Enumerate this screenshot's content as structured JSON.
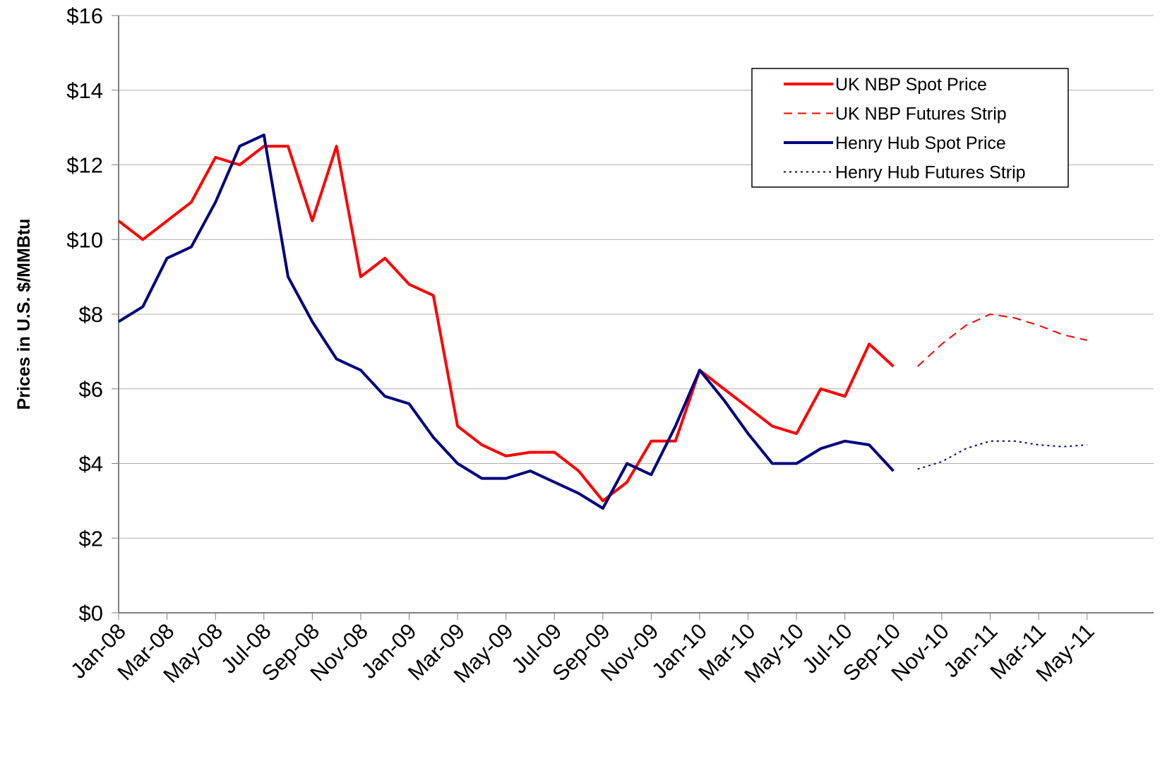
{
  "chart_data": {
    "type": "line",
    "ylabel": "Prices  in U.S. $/MMBtu",
    "xlim": [
      "2008-01",
      "2011-06"
    ],
    "xticks": [
      {
        "value": "2008-01",
        "label": "Jan-08"
      },
      {
        "value": "2008-03",
        "label": "Mar-08"
      },
      {
        "value": "2008-05",
        "label": "May-08"
      },
      {
        "value": "2008-07",
        "label": "Jul-08"
      },
      {
        "value": "2008-09",
        "label": "Sep-08"
      },
      {
        "value": "2008-11",
        "label": "Nov-08"
      },
      {
        "value": "2009-01",
        "label": "Jan-09"
      },
      {
        "value": "2009-03",
        "label": "Mar-09"
      },
      {
        "value": "2009-05",
        "label": "May-09"
      },
      {
        "value": "2009-07",
        "label": "Jul-09"
      },
      {
        "value": "2009-09",
        "label": "Sep-09"
      },
      {
        "value": "2009-11",
        "label": "Nov-09"
      },
      {
        "value": "2010-01",
        "label": "Jan-10"
      },
      {
        "value": "2010-03",
        "label": "Mar-10"
      },
      {
        "value": "2010-05",
        "label": "May-10"
      },
      {
        "value": "2010-07",
        "label": "Jul-10"
      },
      {
        "value": "2010-09",
        "label": "Sep-10"
      },
      {
        "value": "2010-11",
        "label": "Nov-10"
      },
      {
        "value": "2011-01",
        "label": "Jan-11"
      },
      {
        "value": "2011-03",
        "label": "Mar-11"
      },
      {
        "value": "2011-05",
        "label": "May-11"
      }
    ],
    "ylim": [
      0,
      16
    ],
    "yticks": [
      {
        "value": 0,
        "label": "$0"
      },
      {
        "value": 2,
        "label": "$2"
      },
      {
        "value": 4,
        "label": "$4"
      },
      {
        "value": 6,
        "label": "$6"
      },
      {
        "value": 8,
        "label": "$8"
      },
      {
        "value": 10,
        "label": "$10"
      },
      {
        "value": 12,
        "label": "$12"
      },
      {
        "value": 14,
        "label": "$14"
      },
      {
        "value": 16,
        "label": "$16"
      }
    ],
    "grid": true,
    "legend_position": "upper right",
    "series": [
      {
        "name": "UK NBP Spot Price",
        "color": "#ff0000",
        "dash": "solid",
        "x": [
          "2008-01",
          "2008-02",
          "2008-03",
          "2008-04",
          "2008-05",
          "2008-06",
          "2008-07",
          "2008-08",
          "2008-09",
          "2008-10",
          "2008-11",
          "2008-12",
          "2009-01",
          "2009-02",
          "2009-03",
          "2009-04",
          "2009-05",
          "2009-06",
          "2009-07",
          "2009-08",
          "2009-09",
          "2009-10",
          "2009-11",
          "2009-12",
          "2010-01",
          "2010-02",
          "2010-03",
          "2010-04",
          "2010-05",
          "2010-06",
          "2010-07",
          "2010-08",
          "2010-09"
        ],
        "values": [
          10.5,
          10.0,
          10.5,
          11.0,
          12.2,
          12.0,
          12.5,
          12.5,
          10.5,
          12.5,
          9.0,
          9.5,
          8.8,
          8.5,
          5.0,
          4.5,
          4.2,
          4.3,
          4.3,
          3.8,
          3.0,
          3.5,
          4.6,
          4.6,
          6.5,
          6.0,
          5.5,
          5.0,
          4.8,
          6.0,
          5.8,
          7.2,
          6.6
        ]
      },
      {
        "name": "UK NBP Futures Strip",
        "color": "#ff0000",
        "dash": "dashed",
        "x": [
          "2010-10",
          "2010-11",
          "2010-12",
          "2011-01",
          "2011-02",
          "2011-03",
          "2011-04",
          "2011-05"
        ],
        "values": [
          6.6,
          7.2,
          7.7,
          8.0,
          7.9,
          7.7,
          7.45,
          7.3
        ]
      },
      {
        "name": "Henry Hub Spot Price",
        "color": "#000080",
        "dash": "solid",
        "x": [
          "2008-01",
          "2008-02",
          "2008-03",
          "2008-04",
          "2008-05",
          "2008-06",
          "2008-07",
          "2008-08",
          "2008-09",
          "2008-10",
          "2008-11",
          "2008-12",
          "2009-01",
          "2009-02",
          "2009-03",
          "2009-04",
          "2009-05",
          "2009-06",
          "2009-07",
          "2009-08",
          "2009-09",
          "2009-10",
          "2009-11",
          "2009-12",
          "2010-01",
          "2010-02",
          "2010-03",
          "2010-04",
          "2010-05",
          "2010-06",
          "2010-07",
          "2010-08",
          "2010-09"
        ],
        "values": [
          7.8,
          8.2,
          9.5,
          9.8,
          11.0,
          12.5,
          12.8,
          9.0,
          7.8,
          6.8,
          6.5,
          5.8,
          5.6,
          4.7,
          4.0,
          3.6,
          3.6,
          3.8,
          3.5,
          3.2,
          2.8,
          4.0,
          3.7,
          5.0,
          6.5,
          5.7,
          4.8,
          4.0,
          4.0,
          4.4,
          4.6,
          4.5,
          3.8
        ]
      },
      {
        "name": "Henry Hub Futures Strip",
        "color": "#000080",
        "dash": "dotted",
        "x": [
          "2010-10",
          "2010-11",
          "2010-12",
          "2011-01",
          "2011-02",
          "2011-03",
          "2011-04",
          "2011-05"
        ],
        "values": [
          3.85,
          4.05,
          4.4,
          4.6,
          4.6,
          4.5,
          4.45,
          4.5
        ]
      }
    ]
  }
}
